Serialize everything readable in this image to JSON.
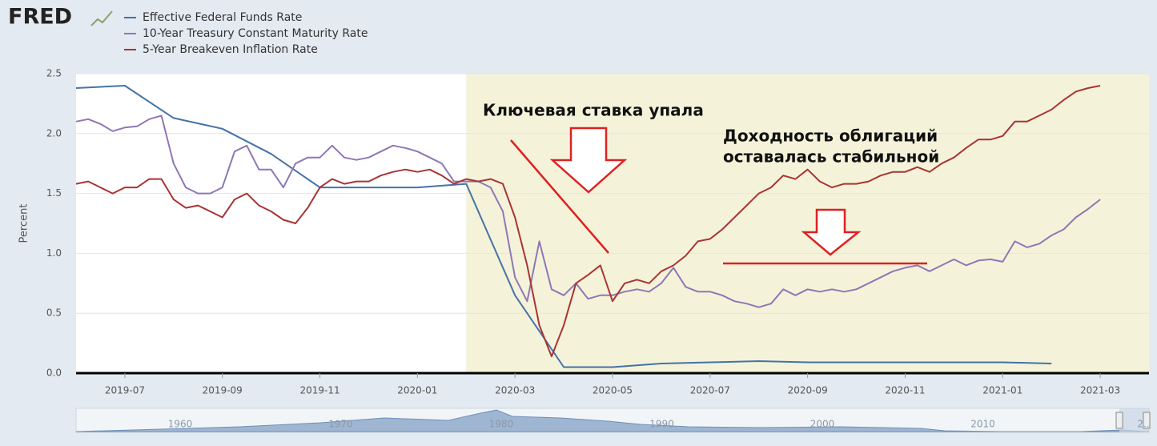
{
  "chart_data": {
    "type": "line",
    "logo": "FRED",
    "y_label": "Percent",
    "xlim": [
      "2019-06",
      "2021-04"
    ],
    "xticks": [
      "2019-07",
      "2019-09",
      "2019-11",
      "2020-01",
      "2020-03",
      "2020-05",
      "2020-07",
      "2020-09",
      "2020-11",
      "2021-01",
      "2021-03"
    ],
    "ylim": [
      0,
      2.5
    ],
    "yticks": [
      {
        "value": 0,
        "label": "0.0"
      },
      0.5,
      {
        "value": 1,
        "label": "1.0"
      },
      1.5,
      {
        "value": 2,
        "label": "2.0"
      },
      2.5
    ],
    "grid": true,
    "highlight": {
      "from": "2020-02",
      "color": "#f4f3da"
    },
    "series": [
      {
        "name": "Effective Federal Funds Rate",
        "color": "#4572a7",
        "x": [
          "2019-06",
          "2019-07",
          "2019-08",
          "2019-09",
          "2019-10",
          "2019-11",
          "2019-12",
          "2020-01",
          "2020-02",
          "2020-03",
          "2020-04",
          "2020-05",
          "2020-06",
          "2020-07",
          "2020-08",
          "2020-09",
          "2020-10",
          "2020-11",
          "2020-12",
          "2021-01",
          "2021-02"
        ],
        "values": [
          2.38,
          2.4,
          2.13,
          2.04,
          1.83,
          1.55,
          1.55,
          1.55,
          1.58,
          0.65,
          0.05,
          0.05,
          0.08,
          0.09,
          0.1,
          0.09,
          0.09,
          0.09,
          0.09,
          0.09,
          0.08
        ]
      },
      {
        "name": "10-Year Treasury Constant Maturity Rate",
        "color": "#8e77b5",
        "x": [
          "2019-06",
          "2019-06",
          "2019-06",
          "2019-06",
          "2019-07",
          "2019-07",
          "2019-07",
          "2019-07",
          "2019-08",
          "2019-08",
          "2019-08",
          "2019-08",
          "2019-09",
          "2019-09",
          "2019-09",
          "2019-09",
          "2019-10",
          "2019-10",
          "2019-10",
          "2019-10",
          "2019-11",
          "2019-11",
          "2019-11",
          "2019-11",
          "2019-12",
          "2019-12",
          "2019-12",
          "2019-12",
          "2020-01",
          "2020-01",
          "2020-01",
          "2020-01",
          "2020-02",
          "2020-02",
          "2020-02",
          "2020-02",
          "2020-03",
          "2020-03",
          "2020-03",
          "2020-03",
          "2020-04",
          "2020-04",
          "2020-04",
          "2020-04",
          "2020-05",
          "2020-05",
          "2020-05",
          "2020-05",
          "2020-06",
          "2020-06",
          "2020-06",
          "2020-06",
          "2020-07",
          "2020-07",
          "2020-07",
          "2020-07",
          "2020-08",
          "2020-08",
          "2020-08",
          "2020-08",
          "2020-09",
          "2020-09",
          "2020-09",
          "2020-09",
          "2020-10",
          "2020-10",
          "2020-10",
          "2020-10",
          "2020-11",
          "2020-11",
          "2020-11",
          "2020-11",
          "2020-12",
          "2020-12",
          "2020-12",
          "2020-12",
          "2021-01",
          "2021-01",
          "2021-01",
          "2021-01",
          "2021-02",
          "2021-02",
          "2021-02",
          "2021-02",
          "2021-03"
        ],
        "values": [
          2.1,
          2.12,
          2.08,
          2.02,
          2.05,
          2.06,
          2.12,
          2.15,
          1.75,
          1.55,
          1.5,
          1.5,
          1.55,
          1.85,
          1.9,
          1.7,
          1.7,
          1.55,
          1.75,
          1.8,
          1.8,
          1.9,
          1.8,
          1.78,
          1.8,
          1.85,
          1.9,
          1.88,
          1.85,
          1.8,
          1.75,
          1.6,
          1.6,
          1.6,
          1.55,
          1.35,
          0.8,
          0.6,
          1.1,
          0.7,
          0.65,
          0.75,
          0.62,
          0.65,
          0.65,
          0.68,
          0.7,
          0.68,
          0.75,
          0.88,
          0.72,
          0.68,
          0.68,
          0.65,
          0.6,
          0.58,
          0.55,
          0.58,
          0.7,
          0.65,
          0.7,
          0.68,
          0.7,
          0.68,
          0.7,
          0.75,
          0.8,
          0.85,
          0.88,
          0.9,
          0.85,
          0.9,
          0.95,
          0.9,
          0.94,
          0.95,
          0.93,
          1.1,
          1.05,
          1.08,
          1.15,
          1.2,
          1.3,
          1.37,
          1.45
        ]
      },
      {
        "name": "5-Year Breakeven Inflation Rate",
        "color": "#aa3333",
        "x": [
          "2019-06",
          "2019-06",
          "2019-06",
          "2019-06",
          "2019-07",
          "2019-07",
          "2019-07",
          "2019-07",
          "2019-08",
          "2019-08",
          "2019-08",
          "2019-08",
          "2019-09",
          "2019-09",
          "2019-09",
          "2019-09",
          "2019-10",
          "2019-10",
          "2019-10",
          "2019-10",
          "2019-11",
          "2019-11",
          "2019-11",
          "2019-11",
          "2019-12",
          "2019-12",
          "2019-12",
          "2019-12",
          "2020-01",
          "2020-01",
          "2020-01",
          "2020-01",
          "2020-02",
          "2020-02",
          "2020-02",
          "2020-02",
          "2020-03",
          "2020-03",
          "2020-03",
          "2020-03",
          "2020-04",
          "2020-04",
          "2020-04",
          "2020-04",
          "2020-05",
          "2020-05",
          "2020-05",
          "2020-05",
          "2020-06",
          "2020-06",
          "2020-06",
          "2020-06",
          "2020-07",
          "2020-07",
          "2020-07",
          "2020-07",
          "2020-08",
          "2020-08",
          "2020-08",
          "2020-08",
          "2020-09",
          "2020-09",
          "2020-09",
          "2020-09",
          "2020-10",
          "2020-10",
          "2020-10",
          "2020-10",
          "2020-11",
          "2020-11",
          "2020-11",
          "2020-11",
          "2020-12",
          "2020-12",
          "2020-12",
          "2020-12",
          "2021-01",
          "2021-01",
          "2021-01",
          "2021-01",
          "2021-02",
          "2021-02",
          "2021-02",
          "2021-02",
          "2021-03"
        ],
        "values": [
          1.58,
          1.6,
          1.55,
          1.5,
          1.55,
          1.55,
          1.62,
          1.62,
          1.45,
          1.38,
          1.4,
          1.35,
          1.3,
          1.45,
          1.5,
          1.4,
          1.35,
          1.28,
          1.25,
          1.38,
          1.55,
          1.62,
          1.58,
          1.6,
          1.6,
          1.65,
          1.68,
          1.7,
          1.68,
          1.7,
          1.65,
          1.58,
          1.62,
          1.6,
          1.62,
          1.58,
          1.3,
          0.9,
          0.4,
          0.14,
          0.4,
          0.75,
          0.82,
          0.9,
          0.6,
          0.75,
          0.78,
          0.75,
          0.85,
          0.9,
          0.98,
          1.1,
          1.12,
          1.2,
          1.3,
          1.4,
          1.5,
          1.55,
          1.65,
          1.62,
          1.7,
          1.6,
          1.55,
          1.58,
          1.58,
          1.6,
          1.65,
          1.68,
          1.68,
          1.72,
          1.68,
          1.75,
          1.8,
          1.88,
          1.95,
          1.95,
          1.98,
          2.1,
          2.1,
          2.15,
          2.2,
          2.28,
          2.35,
          2.38,
          2.4
        ]
      }
    ],
    "annotations": [
      "Ключевая ставка упала",
      "Доходность облигаций",
      "оставалась стабильной"
    ],
    "navigator_labels": [
      "1960",
      "1970",
      "1980",
      "1990",
      "2000",
      "2010",
      "2.."
    ]
  }
}
